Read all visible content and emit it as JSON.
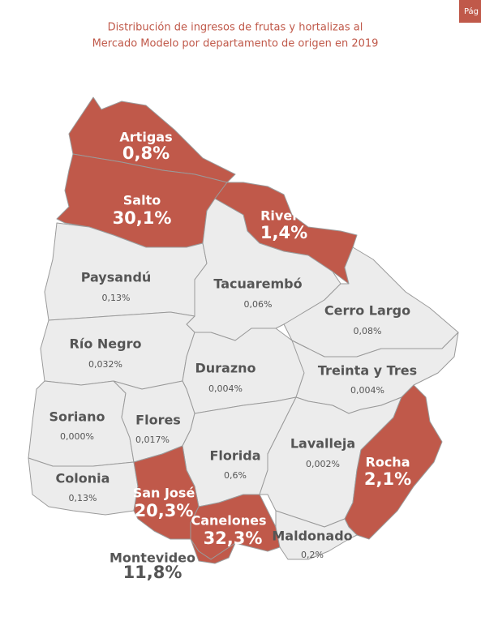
{
  "tab": "Pág",
  "title": [
    "Distribución de ingresos de frutas y hortalizas al",
    "Mercado Modelo por departamento de origen en 2019"
  ],
  "colors": {
    "highlight": "#c0594a",
    "default": "#ececec"
  },
  "regions": [
    {
      "name": "Artigas",
      "value": "0,8%",
      "highlighted": true
    },
    {
      "name": "Salto",
      "value": "30,1%",
      "highlighted": true
    },
    {
      "name": "Rivera",
      "value": "1,4%",
      "highlighted": true
    },
    {
      "name": "Paysandú",
      "value": "0,13%",
      "highlighted": false
    },
    {
      "name": "Tacuarembó",
      "value": "0,06%",
      "highlighted": false
    },
    {
      "name": "Cerro Largo",
      "value": "0,08%",
      "highlighted": false
    },
    {
      "name": "Río Negro",
      "value": "0,032%",
      "highlighted": false
    },
    {
      "name": "Durazno",
      "value": "0,004%",
      "highlighted": false
    },
    {
      "name": "Treinta y Tres",
      "value": "0,004%",
      "highlighted": false
    },
    {
      "name": "Soriano",
      "value": "0,000%",
      "highlighted": false
    },
    {
      "name": "Flores",
      "value": "0,017%",
      "highlighted": false
    },
    {
      "name": "Florida",
      "value": "0,6%",
      "highlighted": false
    },
    {
      "name": "Lavalleja",
      "value": "0,002%",
      "highlighted": false
    },
    {
      "name": "Rocha",
      "value": "2,1%",
      "highlighted": true
    },
    {
      "name": "Colonia",
      "value": "0,13%",
      "highlighted": false
    },
    {
      "name": "San José",
      "value": "20,3%",
      "highlighted": true
    },
    {
      "name": "Canelones",
      "value": "32,3%",
      "highlighted": true
    },
    {
      "name": "Maldonado",
      "value": "0,2%",
      "highlighted": false
    },
    {
      "name": "Montevideo",
      "value": "11,8%",
      "highlighted": true
    }
  ]
}
